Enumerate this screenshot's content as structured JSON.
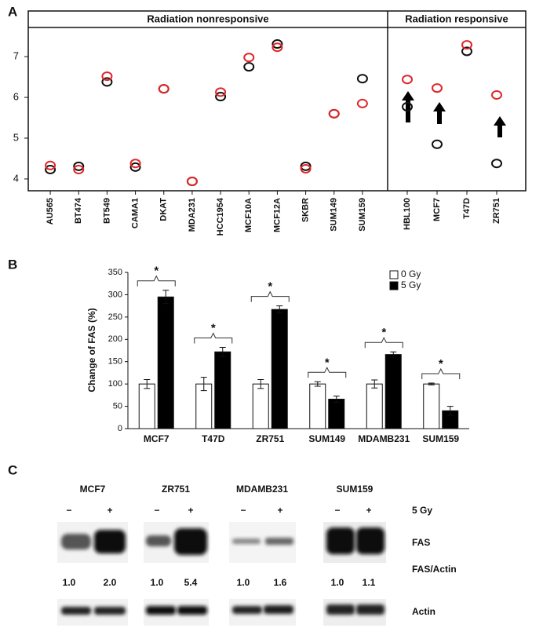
{
  "panel_labels": [
    "A",
    "B",
    "C"
  ],
  "chart_data": [
    {
      "type": "dot",
      "ylim": [
        3.71,
        8.12
      ],
      "yticks": [
        4,
        5,
        6,
        7
      ],
      "groups": [
        {
          "label": "Radiation nonresponsive",
          "categories": [
            "AU565",
            "BT474",
            "BT549",
            "CAMA1",
            "DKAT",
            "MDA231",
            "HCC1954",
            "MCF10A",
            "MCF12A",
            "SKBR",
            "SUM149",
            "SUM159"
          ],
          "series": [
            {
              "color": "#111111",
              "values": [
                4.23,
                4.31,
                6.38,
                4.29,
                6.21,
                3.94,
                6.02,
                6.75,
                7.31,
                4.31,
                5.6,
                6.46
              ]
            },
            {
              "color": "#e0262a",
              "values": [
                4.33,
                4.23,
                6.52,
                4.38,
                6.21,
                3.94,
                6.13,
                6.98,
                7.23,
                4.25,
                5.6,
                5.85
              ]
            }
          ]
        },
        {
          "label": "Radiation responsive",
          "categories": [
            "HBL100",
            "MCF7",
            "T47D",
            "ZR751"
          ],
          "series": [
            {
              "color": "#111111",
              "values": [
                5.77,
                4.85,
                7.13,
                4.38
              ]
            },
            {
              "color": "#e0262a",
              "values": [
                6.44,
                6.23,
                7.29,
                6.06
              ]
            }
          ]
        }
      ]
    },
    {
      "type": "bar",
      "y_label": "Change of FAS (%)",
      "categories": [
        "MCF7",
        "T47D",
        "ZR751",
        "SUM149",
        "MDAMB231",
        "SUM159"
      ],
      "series": [
        {
          "name": "0 Gy",
          "color": "#ffffff",
          "values": [
            100,
            100,
            100,
            100,
            100,
            100
          ],
          "errors": [
            10,
            15,
            10,
            5,
            9,
            2
          ]
        },
        {
          "name": "5 Gy",
          "color": "#000000",
          "values": [
            295,
            172,
            267,
            66,
            166,
            40
          ],
          "errors": [
            15,
            10,
            8,
            7,
            6,
            10
          ]
        }
      ],
      "annotations": [
        "*",
        "*",
        "*",
        "*",
        "*",
        "*"
      ],
      "ylim": [
        0,
        350
      ],
      "yticks": [
        0,
        50,
        100,
        150,
        200,
        250,
        300,
        350
      ],
      "legend": "top-right"
    }
  ],
  "panel_c": {
    "cell_lines": [
      "MCF7",
      "ZR751",
      "MDAMB231",
      "SUM159"
    ],
    "lanes": [
      "−",
      "+",
      "−",
      "+",
      "−",
      "+",
      "−",
      "+"
    ],
    "treatment": "5 Gy",
    "fas": "FAS",
    "ratio_label": "FAS/Actin",
    "ratios": [
      "1.0",
      "2.0",
      "1.0",
      "5.4",
      "1.0",
      "1.6",
      "1.0",
      "1.1"
    ],
    "actin": "Actin"
  }
}
